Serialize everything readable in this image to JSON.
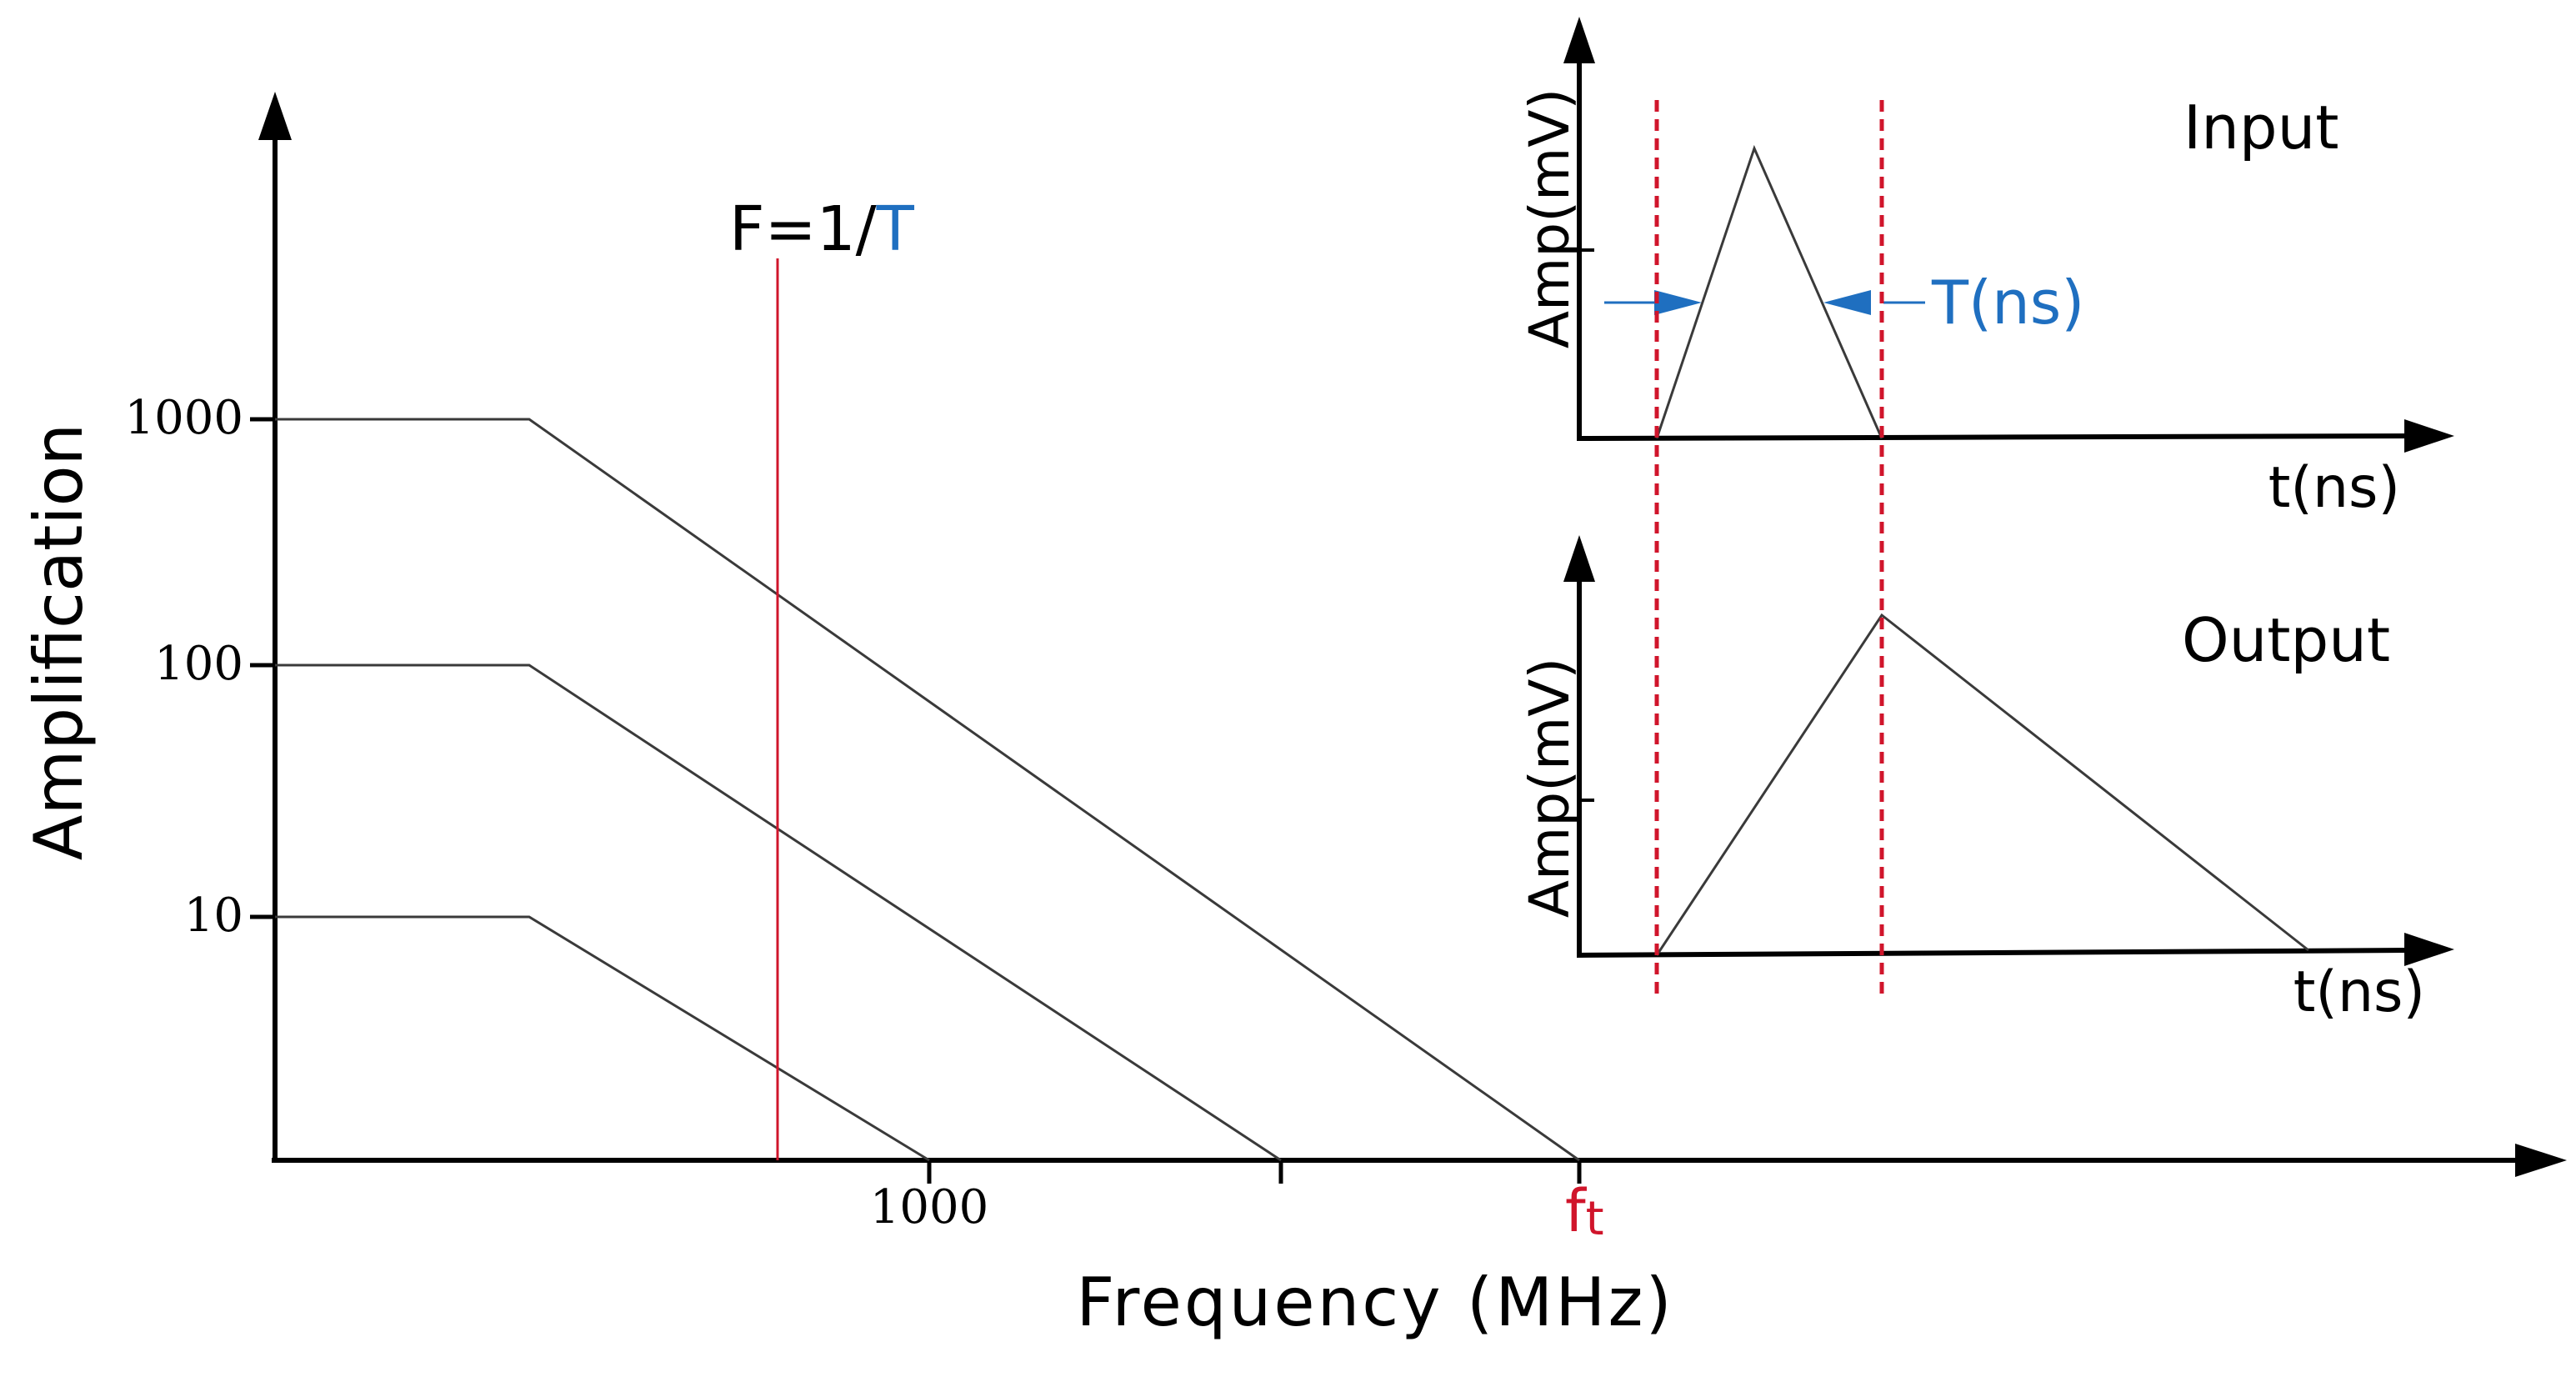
{
  "main_plot": {
    "y_label": "Amplification",
    "x_label": "Frequency (MHz)",
    "y_ticks": [
      "1000",
      "100",
      "10"
    ],
    "x_tick_label": "1000",
    "ft_label": "f",
    "ft_subscript": "t",
    "marker_prefix": "F=1/",
    "marker_suffix": "T"
  },
  "input_panel": {
    "title": "Input",
    "y_label": "Amp(mV)",
    "x_label": "t(ns)",
    "width_label": "T(ns)"
  },
  "output_panel": {
    "title": "Output",
    "y_label": "Amp(mV)",
    "x_label": "t(ns)"
  },
  "colors": {
    "axis": "#000000",
    "curve": "#3a3a3a",
    "marker_red": "#d0152b",
    "accent_blue": "#1f6fc0"
  }
}
